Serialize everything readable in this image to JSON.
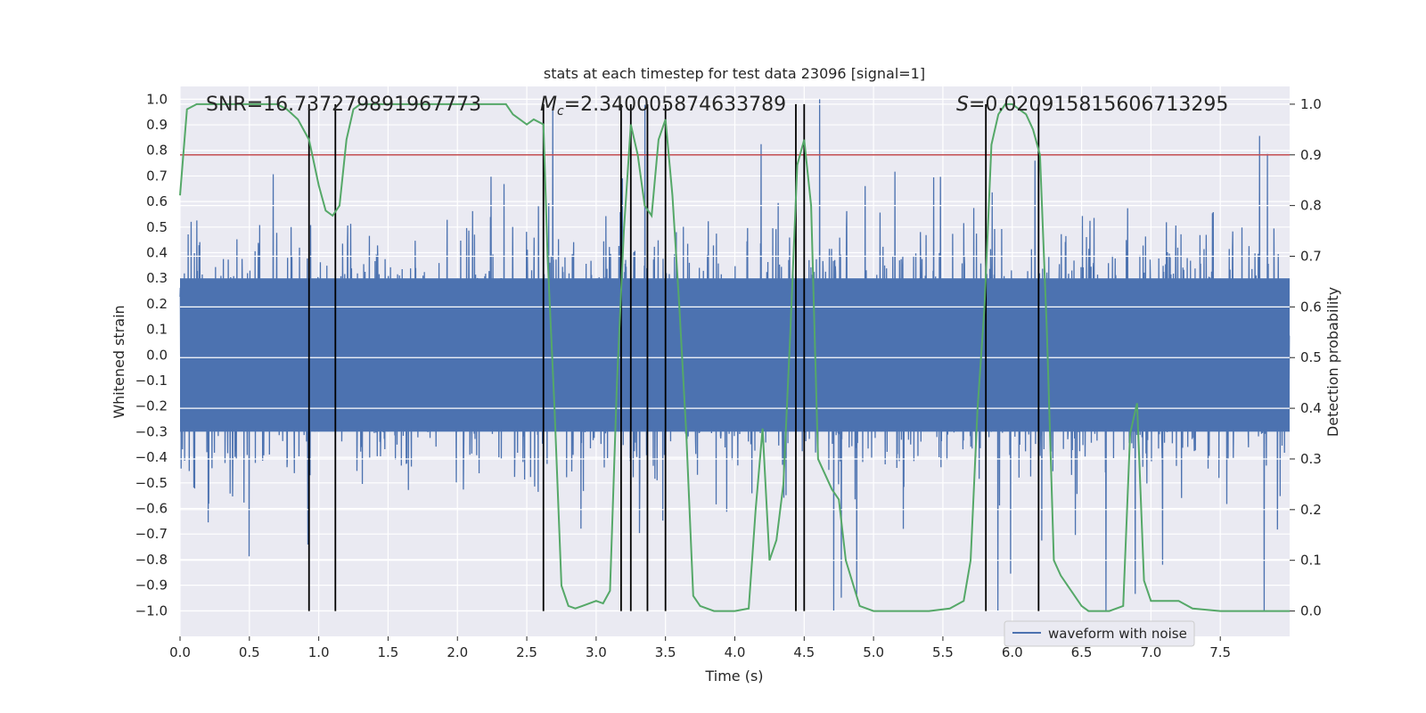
{
  "chart_data": {
    "type": "line",
    "title": "stats at each timestep for test data 23096 [signal=1]",
    "xlabel": "Time (s)",
    "ylabel_left": "Whitened strain",
    "ylabel_right": "Detection probability",
    "xlim": [
      0,
      8
    ],
    "ylim_left": [
      -1.1,
      1.05
    ],
    "ylim_right": [
      -0.05,
      1.035
    ],
    "x_ticks": [
      "0.0",
      "0.5",
      "1.0",
      "1.5",
      "2.0",
      "2.5",
      "3.0",
      "3.5",
      "4.0",
      "4.5",
      "5.0",
      "5.5",
      "6.0",
      "6.5",
      "7.0",
      "7.5"
    ],
    "x_tick_values": [
      0,
      0.5,
      1,
      1.5,
      2,
      2.5,
      3,
      3.5,
      4,
      4.5,
      5,
      5.5,
      6,
      6.5,
      7,
      7.5
    ],
    "y_left_ticks": [
      "1.0",
      "0.9",
      "0.8",
      "0.7",
      "0.6",
      "0.5",
      "0.4",
      "0.3",
      "0.2",
      "0.1",
      "0.0",
      "-0.1",
      "-0.2",
      "-0.3",
      "-0.4",
      "-0.5",
      "-0.6",
      "-0.7",
      "-0.8",
      "-0.9",
      "-1.0"
    ],
    "y_left_tick_values": [
      1,
      0.9,
      0.8,
      0.7,
      0.6,
      0.5,
      0.4,
      0.3,
      0.2,
      0.1,
      0,
      -0.1,
      -0.2,
      -0.3,
      -0.4,
      -0.5,
      -0.6,
      -0.7,
      -0.8,
      -0.9,
      -1.0
    ],
    "y_right_ticks": [
      "1.0",
      "0.9",
      "0.8",
      "0.7",
      "0.6",
      "0.5",
      "0.4",
      "0.3",
      "0.2",
      "0.1",
      "0.0"
    ],
    "y_right_tick_values": [
      1,
      0.9,
      0.8,
      0.7,
      0.6,
      0.5,
      0.4,
      0.3,
      0.2,
      0.1,
      0
    ],
    "annotations": {
      "snr": "SNR=16.737279891967773",
      "mc_symbol": "M",
      "mc_sub": "c",
      "mc_value": "=2.340005874633789",
      "s_symbol": "S",
      "s_value": "=0.020915815606713295"
    },
    "threshold": {
      "value": 0.9,
      "axis": "right",
      "color": "#c44e52"
    },
    "vertical_lines": [
      0.93,
      1.12,
      2.62,
      3.18,
      3.25,
      3.37,
      3.5,
      4.44,
      4.5,
      5.81,
      6.19
    ],
    "series": [
      {
        "name": "waveform with noise",
        "axis": "left",
        "color": "#4c72b0",
        "style": "dense noise",
        "core_amplitude": 0.3,
        "max_amplitude": 1.0,
        "samples": 4096
      },
      {
        "name": "detection probability",
        "axis": "right",
        "color": "#55a868",
        "x": [
          0,
          0.05,
          0.12,
          0.2,
          0.3,
          0.5,
          0.7,
          0.77,
          0.85,
          0.93,
          1.0,
          1.05,
          1.1,
          1.15,
          1.2,
          1.25,
          1.3,
          1.35,
          1.45,
          1.6,
          1.8,
          2.0,
          2.2,
          2.35,
          2.4,
          2.45,
          2.5,
          2.55,
          2.62,
          2.65,
          2.7,
          2.75,
          2.8,
          2.85,
          2.9,
          3.0,
          3.05,
          3.1,
          3.15,
          3.2,
          3.25,
          3.3,
          3.35,
          3.4,
          3.45,
          3.5,
          3.55,
          3.6,
          3.65,
          3.7,
          3.75,
          3.85,
          4.0,
          4.1,
          4.15,
          4.2,
          4.25,
          4.3,
          4.35,
          4.4,
          4.45,
          4.5,
          4.55,
          4.6,
          4.7,
          4.75,
          4.8,
          4.9,
          5.0,
          5.2,
          5.4,
          5.55,
          5.65,
          5.7,
          5.75,
          5.8,
          5.85,
          5.9,
          5.95,
          6.0,
          6.05,
          6.1,
          6.15,
          6.2,
          6.25,
          6.3,
          6.35,
          6.4,
          6.5,
          6.55,
          6.6,
          6.7,
          6.8,
          6.85,
          6.9,
          6.95,
          7.0,
          7.05,
          7.1,
          7.2,
          7.3,
          7.5,
          8.0
        ],
        "values": [
          0.82,
          0.99,
          1.0,
          1.0,
          1.0,
          1.0,
          1.0,
          0.99,
          0.97,
          0.93,
          0.84,
          0.79,
          0.78,
          0.8,
          0.93,
          0.99,
          1.0,
          1.0,
          1.0,
          1.0,
          1.0,
          1.0,
          1.0,
          1.0,
          0.98,
          0.97,
          0.96,
          0.97,
          0.96,
          0.7,
          0.4,
          0.05,
          0.01,
          0.005,
          0.01,
          0.02,
          0.015,
          0.04,
          0.45,
          0.75,
          0.96,
          0.9,
          0.8,
          0.78,
          0.93,
          0.97,
          0.82,
          0.6,
          0.35,
          0.03,
          0.01,
          0.0,
          0.0,
          0.005,
          0.2,
          0.36,
          0.1,
          0.14,
          0.25,
          0.55,
          0.88,
          0.93,
          0.8,
          0.3,
          0.24,
          0.22,
          0.1,
          0.01,
          0.0,
          0.0,
          0.0,
          0.005,
          0.02,
          0.1,
          0.4,
          0.6,
          0.92,
          0.98,
          1.0,
          1.0,
          0.99,
          0.98,
          0.95,
          0.9,
          0.55,
          0.1,
          0.07,
          0.05,
          0.01,
          0.0,
          0.0,
          0.0,
          0.01,
          0.35,
          0.41,
          0.06,
          0.02,
          0.02,
          0.02,
          0.02,
          0.005,
          0.0,
          0.0
        ]
      }
    ],
    "legend": {
      "entries": [
        "waveform with noise"
      ],
      "position": "lower-center-right"
    },
    "grid": true
  },
  "colors": {
    "plot_bg": "#eaeaf2",
    "grid": "#ffffff",
    "wave": "#4c72b0",
    "prob": "#55a868",
    "threshold": "#c44e52",
    "vline": "#000000"
  }
}
